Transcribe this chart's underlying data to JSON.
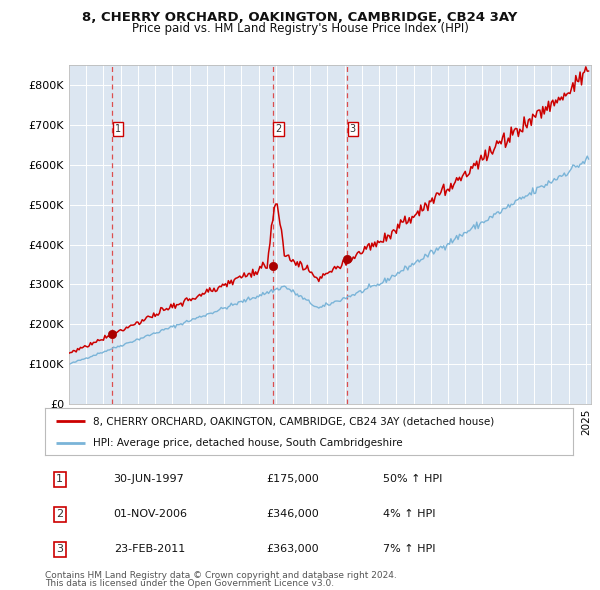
{
  "title": "8, CHERRY ORCHARD, OAKINGTON, CAMBRIDGE, CB24 3AY",
  "subtitle": "Price paid vs. HM Land Registry's House Price Index (HPI)",
  "legend_line1": "8, CHERRY ORCHARD, OAKINGTON, CAMBRIDGE, CB24 3AY (detached house)",
  "legend_line2": "HPI: Average price, detached house, South Cambridgeshire",
  "footer1": "Contains HM Land Registry data © Crown copyright and database right 2024.",
  "footer2": "This data is licensed under the Open Government Licence v3.0.",
  "transactions": [
    {
      "num": 1,
      "date": "30-JUN-1997",
      "price": 175000,
      "hpi_pct": "50%",
      "direction": "↑"
    },
    {
      "num": 2,
      "date": "01-NOV-2006",
      "price": 346000,
      "hpi_pct": "4%",
      "direction": "↑"
    },
    {
      "num": 3,
      "date": "23-FEB-2011",
      "price": 363000,
      "hpi_pct": "7%",
      "direction": "↑"
    }
  ],
  "transaction_dates_decimal": [
    1997.496,
    2006.833,
    2011.143
  ],
  "background_color": "#dce6f1",
  "plot_bg_color": "#dce6f1",
  "red_line_color": "#cc0000",
  "blue_line_color": "#7ab4d8",
  "dashed_line_color": "#dd4444",
  "marker_color": "#aa0000",
  "grid_color": "#ffffff",
  "ylim_max": 850000,
  "yticks": [
    0,
    100000,
    200000,
    300000,
    400000,
    500000,
    600000,
    700000,
    800000
  ],
  "xlim_start": 1995.0,
  "xlim_end": 2025.3
}
